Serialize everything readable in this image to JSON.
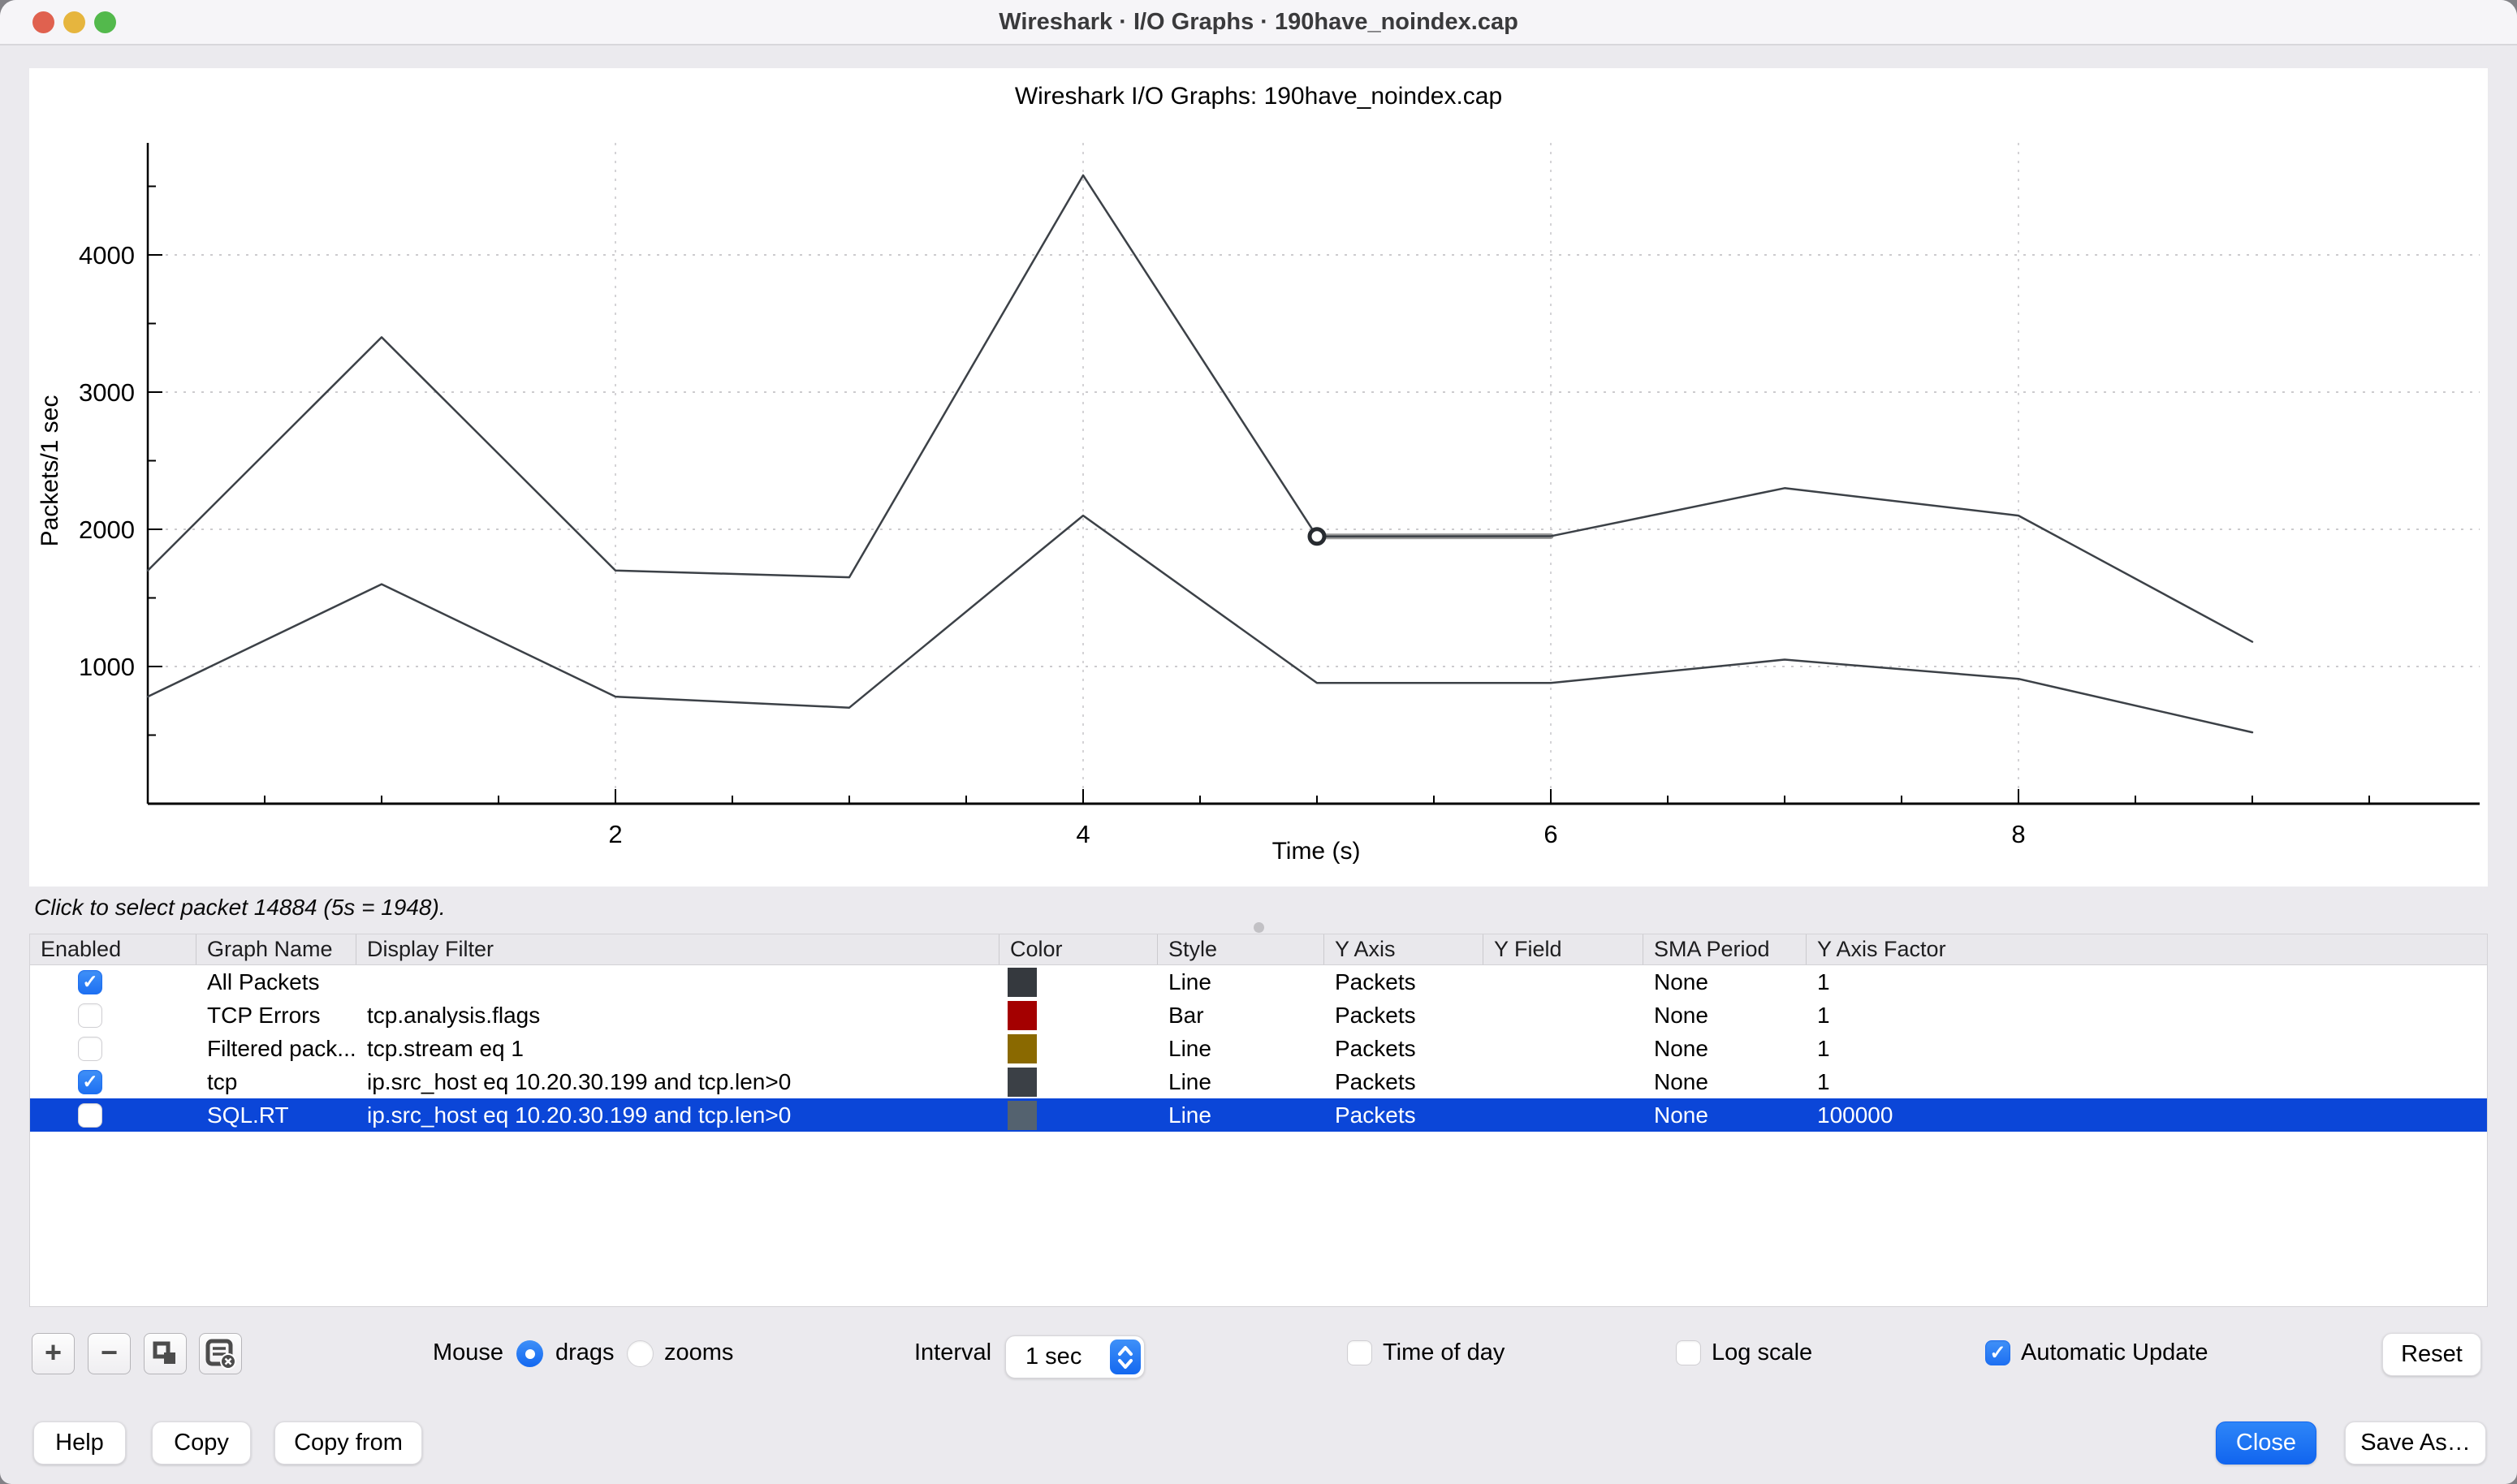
{
  "window": {
    "title": "Wireshark · I/O Graphs · 190have_noindex.cap"
  },
  "chart_data": {
    "type": "line",
    "title": "Wireshark I/O Graphs: 190have_noindex.cap",
    "xlabel": "Time (s)",
    "ylabel": "Packets/1 sec",
    "xlim": [
      0,
      10
    ],
    "ylim": [
      0,
      4800
    ],
    "x_ticks": [
      2,
      4,
      6,
      8
    ],
    "y_ticks": [
      1000,
      2000,
      3000,
      4000
    ],
    "grid": true,
    "x": [
      0,
      1,
      2,
      3,
      4,
      5,
      6,
      7,
      8,
      9
    ],
    "series": [
      {
        "name": "All Packets",
        "color": "#3c4147",
        "values": [
          1700,
          3400,
          1700,
          1650,
          4580,
          1948,
          1950,
          2300,
          2100,
          1180
        ]
      },
      {
        "name": "tcp",
        "color": "#3c4147",
        "values": [
          780,
          1600,
          780,
          700,
          2100,
          880,
          880,
          1050,
          910,
          520
        ]
      }
    ],
    "selected_point": {
      "series": "All Packets",
      "x": 5,
      "y": 1948
    }
  },
  "status_text": "Click to select packet 14884 (5s = 1948).",
  "table": {
    "columns": [
      "Enabled",
      "Graph Name",
      "Display Filter",
      "Color",
      "Style",
      "Y Axis",
      "Y Field",
      "SMA Period",
      "Y Axis Factor"
    ],
    "rows": [
      {
        "enabled": true,
        "selected": false,
        "name": "All Packets",
        "filter": "",
        "color": "#35393e",
        "style": "Line",
        "y_axis": "Packets",
        "y_field": "",
        "sma_period": "None",
        "y_axis_factor": "1"
      },
      {
        "enabled": false,
        "selected": false,
        "name": "TCP Errors",
        "filter": "tcp.analysis.flags",
        "color": "#a40000",
        "style": "Bar",
        "y_axis": "Packets",
        "y_field": "",
        "sma_period": "None",
        "y_axis_factor": "1"
      },
      {
        "enabled": false,
        "selected": false,
        "name": "Filtered pack...",
        "filter": "tcp.stream eq 1",
        "color": "#8a6900",
        "style": "Line",
        "y_axis": "Packets",
        "y_field": "",
        "sma_period": "None",
        "y_axis_factor": "1"
      },
      {
        "enabled": true,
        "selected": false,
        "name": "tcp",
        "filter": "ip.src_host eq 10.20.30.199 and tcp.len>0",
        "color": "#3b4046",
        "style": "Line",
        "y_axis": "Packets",
        "y_field": "",
        "sma_period": "None",
        "y_axis_factor": "1"
      },
      {
        "enabled": false,
        "selected": true,
        "name": "SQL.RT",
        "filter": "ip.src_host eq 10.20.30.199 and tcp.len>0",
        "color": "#54626f",
        "style": "Line",
        "y_axis": "Packets",
        "y_field": "",
        "sma_period": "None",
        "y_axis_factor": "100000"
      }
    ]
  },
  "controls": {
    "add_label": "+",
    "remove_label": "−",
    "mouse_label": "Mouse",
    "drags_label": "drags",
    "zooms_label": "zooms",
    "interval_label": "Interval",
    "interval_value": "1 sec",
    "time_of_day_label": "Time of day",
    "log_scale_label": "Log scale",
    "auto_update_label": "Automatic Update",
    "reset_label": "Reset"
  },
  "footer": {
    "help_label": "Help",
    "copy_label": "Copy",
    "copy_from_label": "Copy from",
    "close_label": "Close",
    "save_as_label": "Save As…"
  },
  "colors": {
    "selection_blue": "#0b46d8",
    "control_blue": "#1e70f2",
    "traffic_red": "#e0614f",
    "traffic_yellow": "#e6b53e",
    "traffic_green": "#53b94c"
  }
}
